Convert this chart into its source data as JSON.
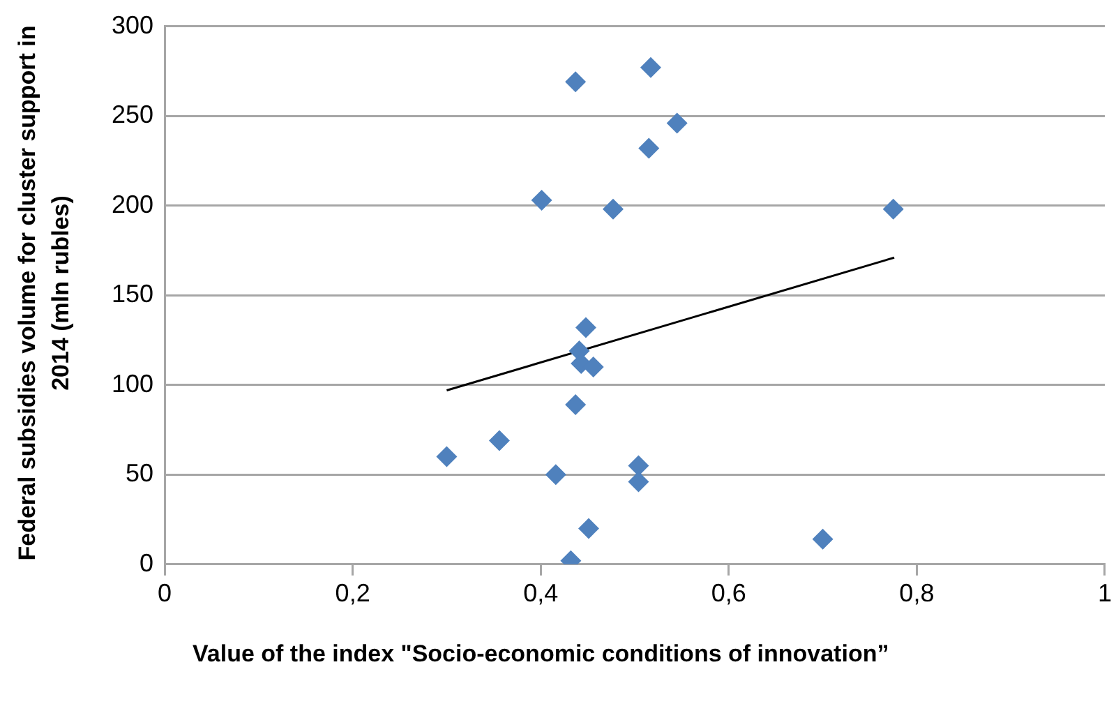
{
  "chart_data": {
    "type": "scatter",
    "xlabel": "Value of the index \"Socio-economic conditions of innovation”",
    "ylabel": "Federal subsidies volume for cluster support in 2014  (mln rubles)",
    "xlim": [
      0,
      1
    ],
    "xticks": [
      0,
      {
        "value": 0.2,
        "label": "0,2"
      },
      {
        "value": 0.4,
        "label": "0,4"
      },
      {
        "value": 0.6,
        "label": "0,6"
      },
      {
        "value": 0.8,
        "label": "0,8"
      },
      1
    ],
    "ylim": [
      0,
      300
    ],
    "yticks": [
      0,
      50,
      100,
      150,
      200,
      250,
      300
    ],
    "grid": "y",
    "legend": false,
    "marker": "diamond",
    "series": [
      {
        "color": "#4f81bd",
        "x": [
          0.437,
          0.517,
          0.545,
          0.515,
          0.401,
          0.477,
          0.448,
          0.441,
          0.443,
          0.456,
          0.437,
          0.356,
          0.3,
          0.416,
          0.504,
          0.504,
          0.451,
          0.432,
          0.775,
          0.7
        ],
        "values": [
          269,
          277,
          246,
          232,
          203,
          198,
          132,
          119,
          112,
          110,
          89,
          69,
          60,
          50,
          55,
          46,
          20,
          2,
          198,
          14
        ]
      },
      {
        "type": "line",
        "color": "#000000",
        "marker": "none",
        "x": [
          0.3,
          0.776
        ],
        "values": [
          97,
          171
        ]
      }
    ]
  }
}
